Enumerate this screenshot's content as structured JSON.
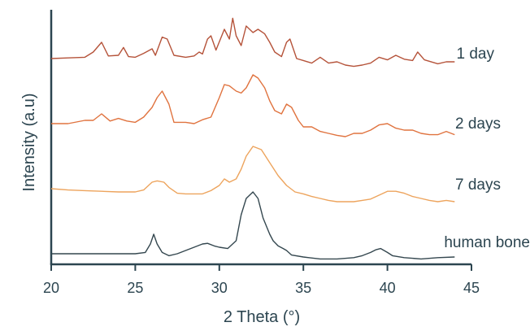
{
  "chart_data": {
    "type": "line",
    "title": "",
    "xlabel": "2 Theta (°)",
    "ylabel": "Intensity (a.u)",
    "xlim": [
      20,
      45
    ],
    "x_ticks": [
      "20",
      "25",
      "30",
      "35",
      "40",
      "45"
    ],
    "y_ticks": [],
    "grid": false,
    "legend": "inline labels at right of each curve",
    "series": [
      {
        "name": "1 day",
        "color": "#b5533a",
        "x": [
          20,
          21,
          22,
          22.5,
          23,
          23.4,
          24,
          24.3,
          24.6,
          25,
          25.5,
          26,
          26.2,
          26.6,
          26.9,
          27.3,
          28,
          28.5,
          28.8,
          29,
          29.3,
          29.5,
          29.8,
          30.3,
          30.6,
          30.8,
          31,
          31.3,
          31.6,
          32,
          32.3,
          32.7,
          33,
          33.3,
          33.7,
          34,
          34.2,
          34.6,
          35,
          35.5,
          36,
          36.5,
          37,
          37.5,
          38,
          38.5,
          39,
          39.5,
          40,
          40.5,
          41,
          41.5,
          41.8,
          42.2,
          43,
          43.5,
          44
        ],
        "values": [
          3.0,
          3.01,
          3.02,
          3.1,
          3.25,
          3.04,
          3.05,
          3.17,
          3.03,
          3.02,
          3.08,
          3.15,
          3.05,
          3.33,
          3.3,
          3.05,
          3.02,
          3.04,
          3.1,
          3.07,
          3.3,
          3.35,
          3.13,
          3.45,
          3.3,
          3.62,
          3.35,
          3.2,
          3.5,
          3.4,
          3.45,
          3.38,
          3.25,
          3.1,
          3.03,
          3.25,
          3.3,
          3.0,
          2.97,
          2.93,
          3.02,
          2.93,
          2.95,
          2.9,
          2.88,
          2.9,
          2.93,
          3.02,
          2.98,
          3.05,
          2.99,
          2.97,
          3.1,
          2.98,
          2.92,
          2.95,
          2.95
        ]
      },
      {
        "name": "2 days",
        "color": "#e0733f",
        "x": [
          20,
          21,
          22,
          22.5,
          23,
          23.5,
          24,
          24.5,
          25,
          25.5,
          26,
          26.3,
          26.6,
          27,
          27.3,
          28,
          28.5,
          29,
          29.5,
          30,
          30.3,
          30.6,
          31,
          31.3,
          31.6,
          32,
          32.3,
          32.7,
          33,
          33.3,
          33.7,
          34,
          34.3,
          34.7,
          35,
          35.5,
          36,
          36.5,
          37,
          37.5,
          38,
          38.5,
          39,
          39.5,
          40,
          40.5,
          41,
          41.5,
          42,
          42.5,
          43,
          43.5,
          44
        ],
        "values": [
          2.0,
          2.0,
          2.05,
          2.05,
          2.15,
          2.04,
          2.08,
          2.04,
          2.02,
          2.1,
          2.25,
          2.4,
          2.5,
          2.3,
          2.02,
          2.02,
          2.0,
          2.06,
          2.1,
          2.4,
          2.6,
          2.58,
          2.5,
          2.47,
          2.55,
          2.75,
          2.7,
          2.55,
          2.35,
          2.2,
          2.15,
          2.3,
          2.25,
          2.05,
          1.95,
          1.95,
          1.88,
          1.85,
          1.82,
          1.8,
          1.85,
          1.85,
          1.9,
          1.98,
          2.0,
          1.93,
          1.9,
          1.9,
          1.85,
          1.83,
          1.83,
          1.88,
          1.83
        ]
      },
      {
        "name": "7 days",
        "color": "#eda45d",
        "x": [
          20,
          21,
          22,
          23,
          24,
          25,
          25.5,
          26,
          26.3,
          26.7,
          27,
          27.5,
          28,
          29,
          29.5,
          30,
          30.3,
          30.6,
          31,
          31.3,
          31.6,
          32,
          32.5,
          33,
          33.5,
          34,
          34.5,
          35,
          35.5,
          36,
          36.5,
          37,
          37.5,
          38,
          38.5,
          39,
          39.5,
          40,
          40.5,
          41,
          41.5,
          42,
          42.5,
          43,
          43.5,
          44
        ],
        "values": [
          1.0,
          0.98,
          0.97,
          0.96,
          0.95,
          0.95,
          0.98,
          1.1,
          1.12,
          1.1,
          1.02,
          0.93,
          0.92,
          0.92,
          0.97,
          1.05,
          1.15,
          1.1,
          1.15,
          1.3,
          1.5,
          1.65,
          1.6,
          1.4,
          1.2,
          1.05,
          0.95,
          0.92,
          0.88,
          0.85,
          0.82,
          0.8,
          0.8,
          0.8,
          0.82,
          0.84,
          0.9,
          0.96,
          0.96,
          0.93,
          0.88,
          0.85,
          0.82,
          0.8,
          0.82,
          0.8
        ]
      },
      {
        "name": "human bone",
        "color": "#34474f",
        "x": [
          20,
          22,
          24,
          25,
          25.6,
          25.9,
          26.1,
          26.3,
          26.6,
          27,
          27.5,
          28,
          28.5,
          29,
          29.3,
          29.7,
          30,
          30.5,
          31,
          31.3,
          31.6,
          32,
          32.3,
          32.6,
          33,
          33.2,
          33.5,
          33.8,
          34,
          34.3,
          35,
          36,
          37,
          38,
          38.5,
          39,
          39.3,
          39.6,
          40,
          40.3,
          41,
          42,
          43,
          44
        ],
        "values": [
          0.0,
          0.0,
          0.0,
          0.0,
          0.02,
          0.15,
          0.3,
          0.15,
          0.02,
          -0.03,
          0.0,
          0.05,
          0.1,
          0.15,
          0.16,
          0.12,
          0.1,
          0.08,
          0.2,
          0.6,
          0.85,
          0.95,
          0.85,
          0.55,
          0.3,
          0.2,
          0.12,
          0.08,
          0.05,
          -0.02,
          -0.05,
          -0.08,
          -0.08,
          -0.06,
          -0.03,
          0.02,
          0.06,
          0.08,
          0.02,
          -0.03,
          -0.06,
          -0.08,
          -0.06,
          -0.05
        ]
      }
    ]
  }
}
